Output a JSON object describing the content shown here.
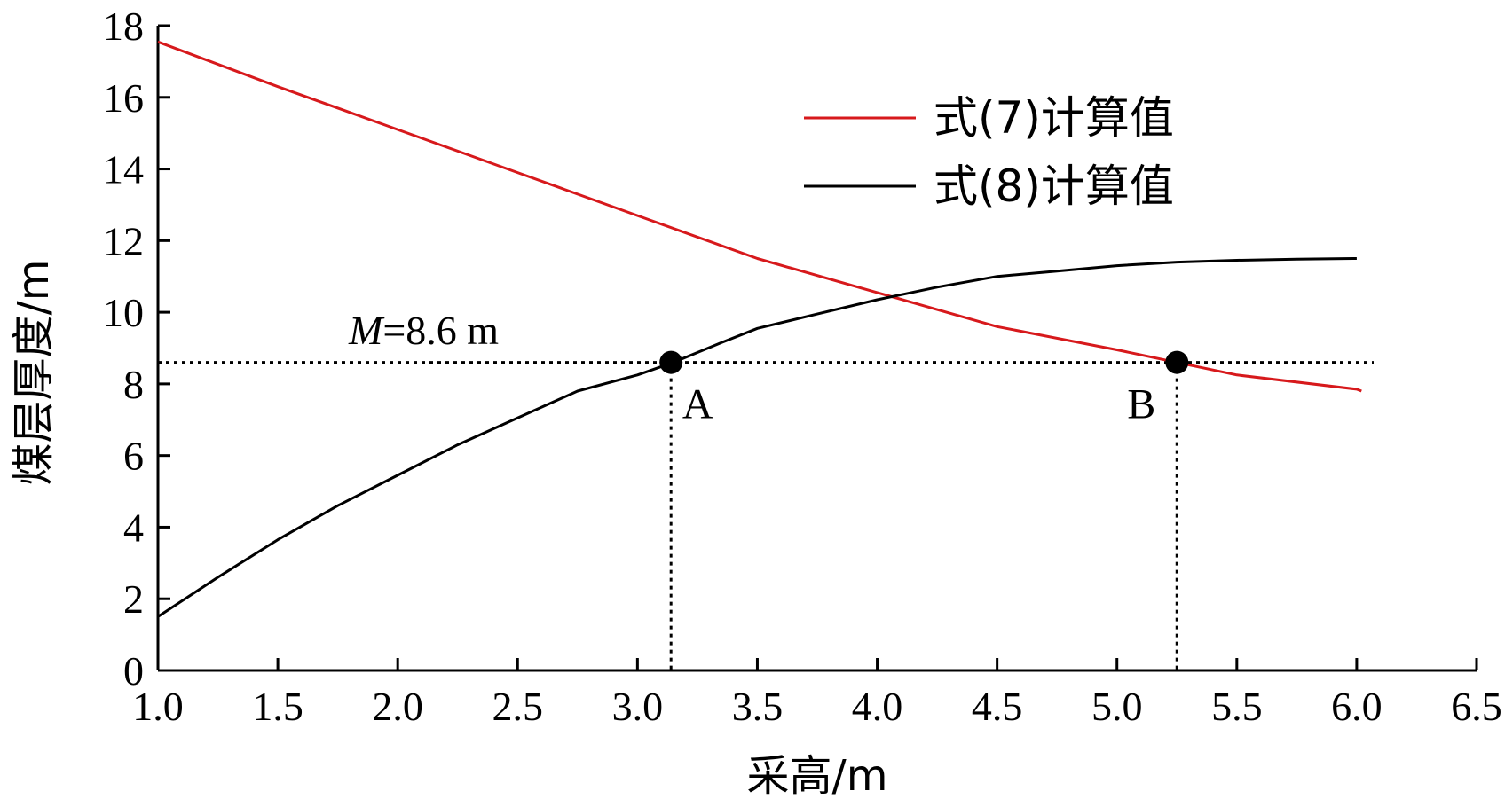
{
  "chart_data": {
    "type": "line",
    "title": "",
    "xlabel": "采高/m",
    "ylabel": "煤层厚度/m",
    "xlim": [
      1.0,
      6.5
    ],
    "ylim": [
      0,
      18
    ],
    "xticks": [
      "1.0",
      "1.5",
      "2.0",
      "2.5",
      "3.0",
      "3.5",
      "4.0",
      "4.5",
      "5.0",
      "5.5",
      "6.0",
      "6.5"
    ],
    "yticks": [
      "0",
      "2",
      "4",
      "6",
      "8",
      "10",
      "12",
      "14",
      "16",
      "18"
    ],
    "grid": false,
    "legend_position": "top-right",
    "series": [
      {
        "name": "式(7)计算值",
        "color": "#d7191c",
        "x": [
          1.0,
          1.5,
          2.0,
          2.5,
          3.0,
          3.5,
          4.0,
          4.08,
          4.5,
          5.0,
          5.25,
          5.5,
          6.0,
          6.02
        ],
        "y": [
          17.55,
          16.3,
          15.1,
          13.9,
          12.7,
          11.5,
          10.55,
          10.4,
          9.6,
          8.95,
          8.6,
          8.25,
          7.85,
          7.8
        ]
      },
      {
        "name": "式(8)计算值",
        "color": "#000000",
        "x": [
          1.0,
          1.25,
          1.5,
          1.75,
          2.0,
          2.25,
          2.5,
          2.75,
          3.0,
          3.15,
          3.35,
          3.5,
          3.75,
          4.0,
          4.25,
          4.5,
          4.75,
          5.0,
          5.25,
          5.5,
          5.75,
          6.0
        ],
        "y": [
          1.5,
          2.6,
          3.65,
          4.6,
          5.45,
          6.3,
          7.05,
          7.8,
          8.25,
          8.6,
          9.15,
          9.55,
          9.95,
          10.35,
          10.7,
          11.0,
          11.15,
          11.3,
          11.4,
          11.45,
          11.48,
          11.5
        ]
      }
    ],
    "reference_line": {
      "y": 8.6,
      "label_var": "M",
      "label_rest": "=8.6 m"
    },
    "points": [
      {
        "label": "A",
        "x": 3.14,
        "y": 8.6
      },
      {
        "label": "B",
        "x": 5.25,
        "y": 8.6
      }
    ]
  }
}
